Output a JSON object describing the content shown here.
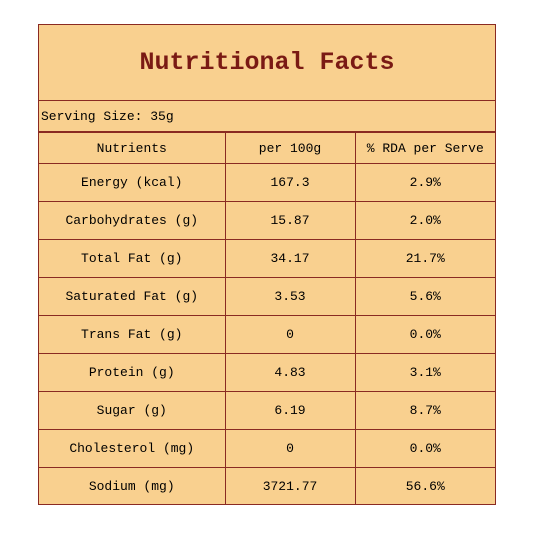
{
  "header": {
    "title": "Nutritional Facts",
    "serving": "Serving Size: 35g"
  },
  "table": {
    "columns": [
      "Nutrients",
      "per 100g",
      "% RDA per Serve"
    ],
    "rows": [
      [
        "Energy (kcal)",
        "167.3",
        "2.9%"
      ],
      [
        "Carbohydrates (g)",
        "15.87",
        "2.0%"
      ],
      [
        "Total Fat (g)",
        "34.17",
        "21.7%"
      ],
      [
        "Saturated Fat (g)",
        "3.53",
        "5.6%"
      ],
      [
        "Trans Fat (g)",
        "0",
        "0.0%"
      ],
      [
        "Protein (g)",
        "4.83",
        "3.1%"
      ],
      [
        "Sugar (g)",
        "6.19",
        "8.7%"
      ],
      [
        "Cholesterol (mg)",
        "0",
        "0.0%"
      ],
      [
        "Sodium (mg)",
        "3721.77",
        "56.6%"
      ]
    ]
  }
}
